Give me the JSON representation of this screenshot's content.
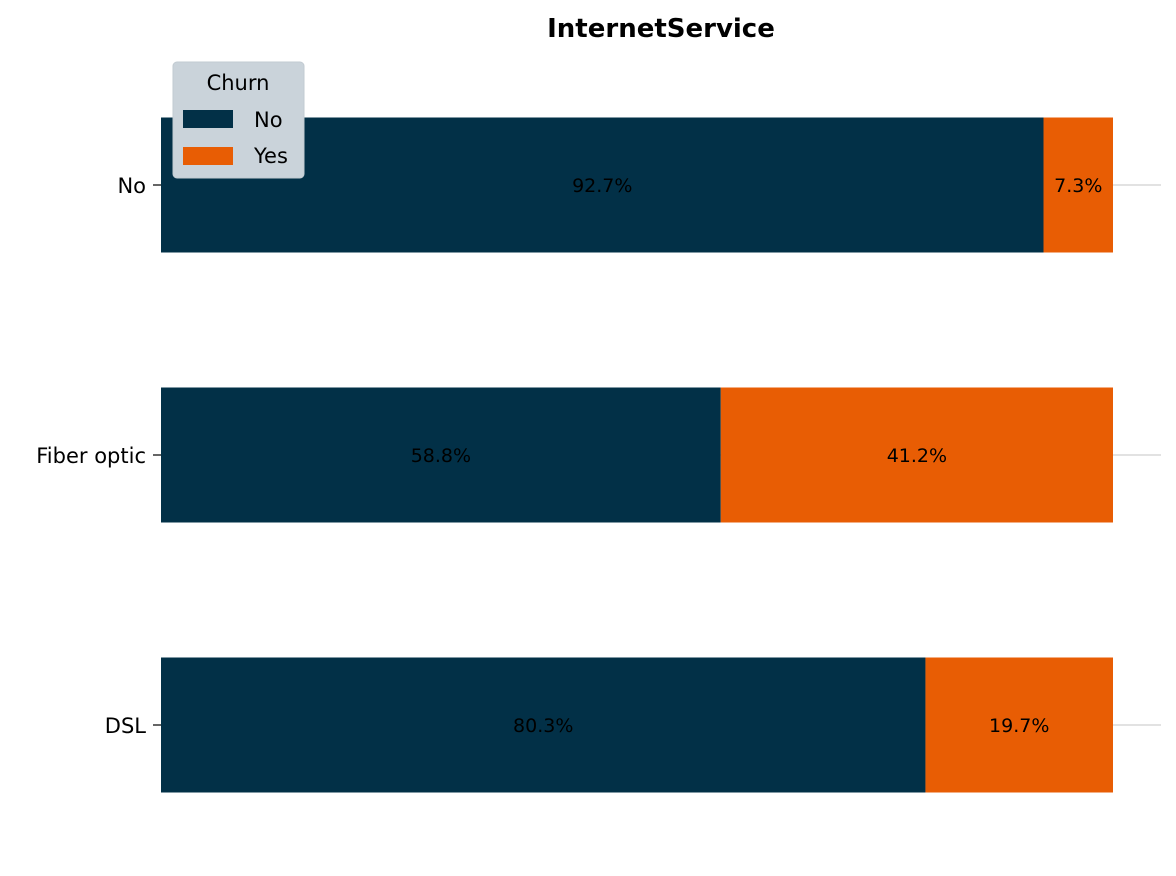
{
  "chart_data": {
    "type": "bar",
    "orientation": "horizontal",
    "stacked": true,
    "title": "InternetService",
    "xlabel": "",
    "ylabel": "",
    "categories": [
      "No",
      "Fiber optic",
      "DSL"
    ],
    "xlim": [
      0,
      100
    ],
    "series": [
      {
        "name": "No",
        "color": "#023047",
        "values": [
          92.7,
          58.8,
          80.3
        ],
        "labels": [
          "92.7%",
          "58.8%",
          "80.3%"
        ]
      },
      {
        "name": "Yes",
        "color": "#e85d04",
        "values": [
          7.3,
          41.2,
          19.7
        ],
        "labels": [
          "7.3%",
          "41.2%",
          "19.7%"
        ]
      }
    ],
    "legend": {
      "title": "Churn",
      "placement": "top-left"
    },
    "grid": {
      "x": false,
      "y": true
    }
  }
}
